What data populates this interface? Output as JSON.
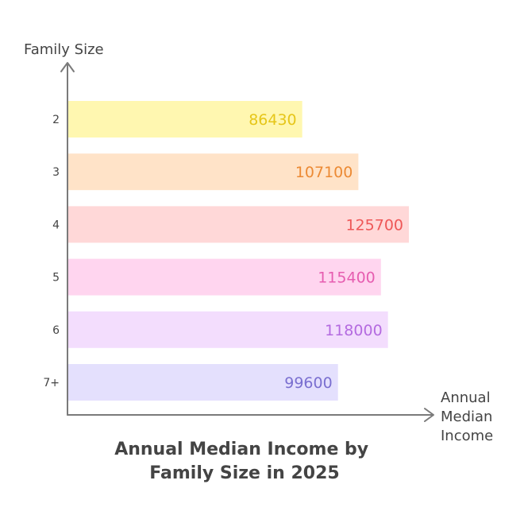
{
  "chart_data": {
    "type": "bar",
    "orientation": "horizontal",
    "title": "Annual Median Income by Family Size in 2025",
    "title_lines": [
      "Annual Median Income by",
      "Family Size in 2025"
    ],
    "ylabel": "Family Size",
    "xlabel": "Annual Median Income",
    "xlabel_lines": [
      "Annual",
      "Median",
      "Income"
    ],
    "categories": [
      "2",
      "3",
      "4",
      "5",
      "6",
      "7+"
    ],
    "values": [
      86430,
      107100,
      125700,
      115400,
      118000,
      99600
    ],
    "xlim": [
      0,
      130000
    ],
    "grid": false,
    "legend": "none",
    "colors": {
      "fills": [
        "#fff7b0",
        "#ffe3c8",
        "#ffd8d8",
        "#ffd5ef",
        "#f3ddfd",
        "#e4e0fd"
      ],
      "labels": [
        "#e6c619",
        "#ec8a34",
        "#ee5757",
        "#e65db0",
        "#b46be0",
        "#7a6fd0"
      ],
      "axis": "#7a7a7a",
      "text": "#444444"
    }
  }
}
